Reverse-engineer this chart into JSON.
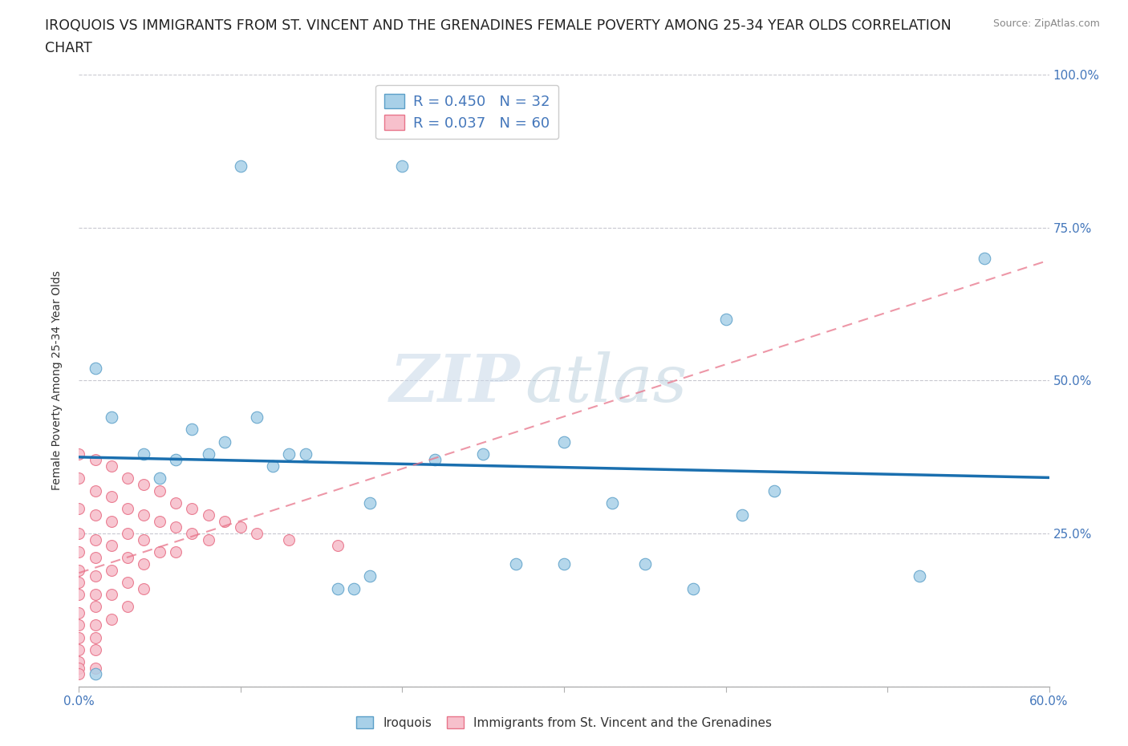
{
  "title_line1": "IROQUOIS VS IMMIGRANTS FROM ST. VINCENT AND THE GRENADINES FEMALE POVERTY AMONG 25-34 YEAR OLDS CORRELATION",
  "title_line2": "CHART",
  "source": "Source: ZipAtlas.com",
  "ylabel": "Female Poverty Among 25-34 Year Olds",
  "xlim": [
    0.0,
    0.6
  ],
  "ylim": [
    0.0,
    1.0
  ],
  "xticks": [
    0.0,
    0.1,
    0.2,
    0.3,
    0.4,
    0.5,
    0.6
  ],
  "xticklabels": [
    "0.0%",
    "",
    "",
    "",
    "",
    "",
    "60.0%"
  ],
  "ytick_positions": [
    0.0,
    0.25,
    0.5,
    0.75,
    1.0
  ],
  "yticklabels": [
    "",
    "25.0%",
    "50.0%",
    "75.0%",
    "100.0%"
  ],
  "watermark_zip": "ZIP",
  "watermark_atlas": "atlas",
  "iroquois_color": "#a8d0e8",
  "immigrants_color": "#f7c0cc",
  "iroquois_edge_color": "#5b9fc8",
  "immigrants_edge_color": "#e8748a",
  "trend_iroquois_color": "#1a6faf",
  "trend_immigrants_color": "#e8748a",
  "R_iroquois": 0.45,
  "N_iroquois": 32,
  "R_immigrants": 0.037,
  "N_immigrants": 60,
  "legend_label_iroquois": "Iroquois",
  "legend_label_immigrants": "Immigrants from St. Vincent and the Grenadines",
  "iroquois_x": [
    0.01,
    0.02,
    0.04,
    0.05,
    0.06,
    0.07,
    0.08,
    0.09,
    0.1,
    0.11,
    0.12,
    0.13,
    0.14,
    0.16,
    0.17,
    0.18,
    0.2,
    0.22,
    0.25,
    0.27,
    0.3,
    0.33,
    0.35,
    0.38,
    0.4,
    0.41,
    0.43,
    0.52,
    0.56,
    0.01,
    0.18,
    0.3
  ],
  "iroquois_y": [
    0.52,
    0.44,
    0.38,
    0.34,
    0.37,
    0.42,
    0.38,
    0.4,
    0.85,
    0.44,
    0.36,
    0.38,
    0.38,
    0.16,
    0.16,
    0.18,
    0.85,
    0.37,
    0.38,
    0.2,
    0.4,
    0.3,
    0.2,
    0.16,
    0.6,
    0.28,
    0.32,
    0.18,
    0.7,
    0.02,
    0.3,
    0.2
  ],
  "immigrants_x": [
    0.0,
    0.0,
    0.0,
    0.0,
    0.0,
    0.0,
    0.0,
    0.0,
    0.0,
    0.0,
    0.0,
    0.0,
    0.0,
    0.0,
    0.0,
    0.01,
    0.01,
    0.01,
    0.01,
    0.01,
    0.01,
    0.01,
    0.01,
    0.01,
    0.01,
    0.01,
    0.01,
    0.02,
    0.02,
    0.02,
    0.02,
    0.02,
    0.02,
    0.02,
    0.03,
    0.03,
    0.03,
    0.03,
    0.03,
    0.03,
    0.04,
    0.04,
    0.04,
    0.04,
    0.04,
    0.05,
    0.05,
    0.05,
    0.06,
    0.06,
    0.06,
    0.07,
    0.07,
    0.08,
    0.08,
    0.09,
    0.1,
    0.11,
    0.13,
    0.16
  ],
  "immigrants_y": [
    0.38,
    0.34,
    0.29,
    0.25,
    0.22,
    0.19,
    0.17,
    0.15,
    0.12,
    0.1,
    0.08,
    0.06,
    0.04,
    0.03,
    0.02,
    0.37,
    0.32,
    0.28,
    0.24,
    0.21,
    0.18,
    0.15,
    0.13,
    0.1,
    0.08,
    0.06,
    0.03,
    0.36,
    0.31,
    0.27,
    0.23,
    0.19,
    0.15,
    0.11,
    0.34,
    0.29,
    0.25,
    0.21,
    0.17,
    0.13,
    0.33,
    0.28,
    0.24,
    0.2,
    0.16,
    0.32,
    0.27,
    0.22,
    0.3,
    0.26,
    0.22,
    0.29,
    0.25,
    0.28,
    0.24,
    0.27,
    0.26,
    0.25,
    0.24,
    0.23
  ],
  "background_color": "#ffffff",
  "grid_color": "#c8c8d0",
  "title_fontsize": 12.5,
  "axis_label_fontsize": 10,
  "tick_fontsize": 11,
  "tick_color": "#4477bb"
}
